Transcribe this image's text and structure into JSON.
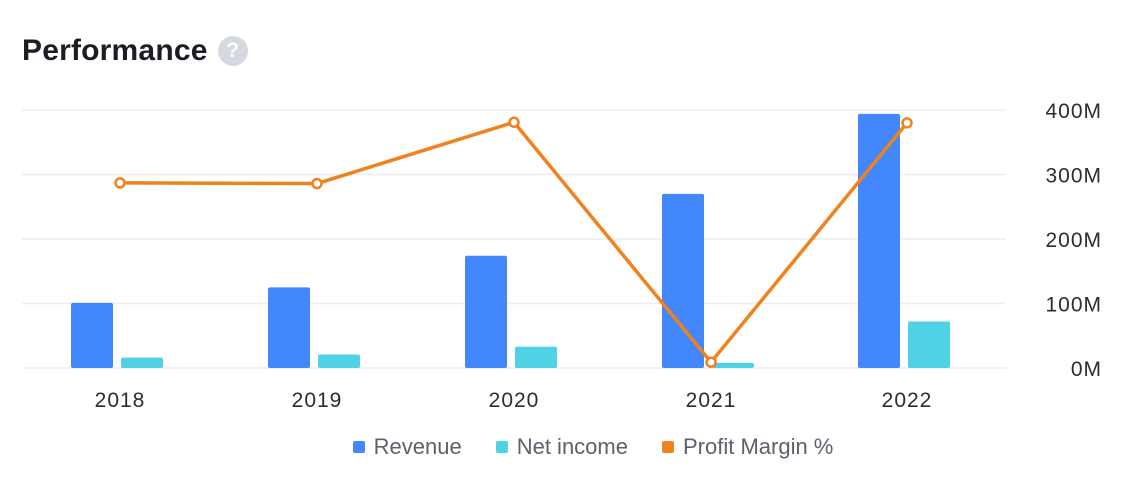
{
  "header": {
    "title": "Performance",
    "help_icon": "question-mark-icon",
    "help_glyph": "?"
  },
  "colors": {
    "revenue": "#4287fb",
    "net_income": "#4fd2e4",
    "profit_margin": "#f0821e",
    "grid": "#eceef3"
  },
  "chart_data": {
    "type": "bar",
    "categories": [
      "2018",
      "2019",
      "2020",
      "2021",
      "2022"
    ],
    "series": [
      {
        "name": "Revenue",
        "type": "bar",
        "axis": "right",
        "values": [
          101,
          125,
          174,
          270,
          394
        ]
      },
      {
        "name": "Net income",
        "type": "bar",
        "axis": "right",
        "values": [
          16,
          21,
          33,
          8,
          72
        ]
      },
      {
        "name": "Profit Margin %",
        "type": "line",
        "axis": "secondary-hidden",
        "values": [
          287,
          286,
          381,
          9,
          380
        ]
      }
    ],
    "y_axis": {
      "position": "right",
      "ylim": [
        0,
        400
      ],
      "ticks": [
        "0M",
        "100M",
        "200M",
        "300M",
        "400M"
      ]
    },
    "grid": true,
    "legend": "bottom-center"
  }
}
